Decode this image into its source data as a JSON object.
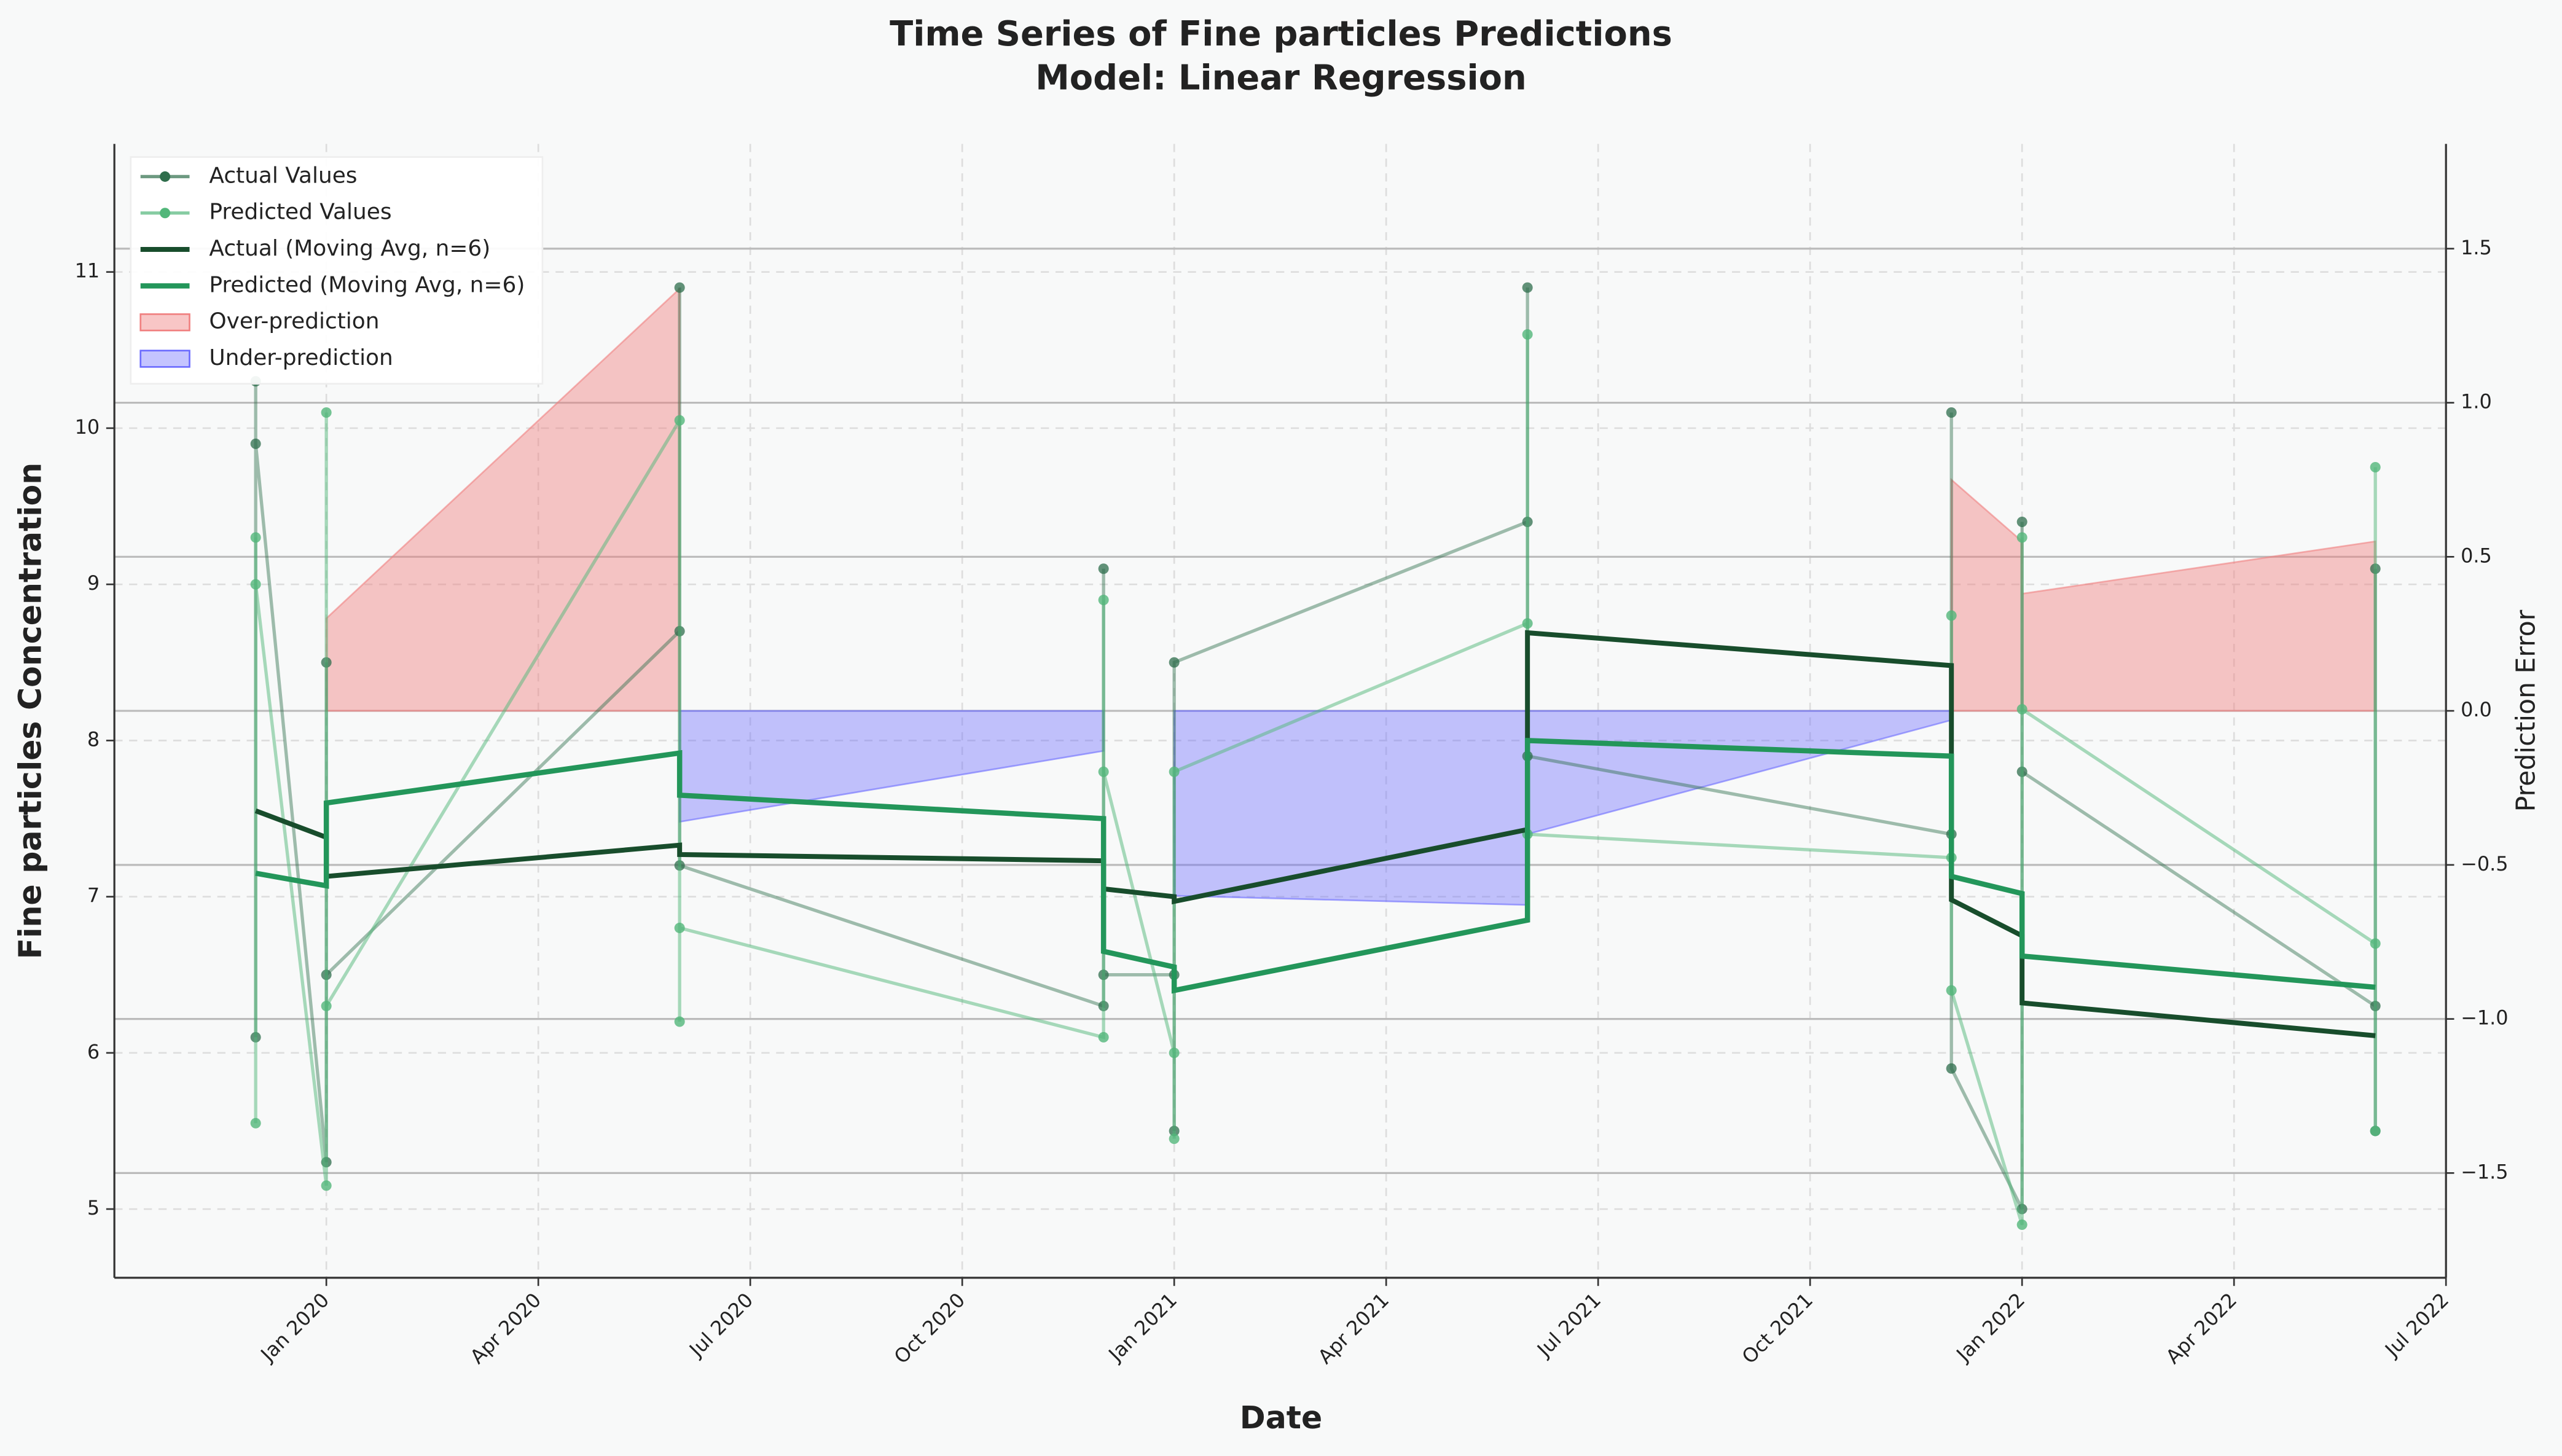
{
  "chart_data": {
    "type": "line",
    "title": "Time Series of Fine particles Predictions",
    "subtitle": "Model: Linear Regression",
    "x_label": "Date",
    "y_label": "Fine particles Concentration",
    "y2_label": "Prediction Error",
    "x": [
      "Dec 2019",
      "Dec 2019",
      "Dec 2019",
      "Jan 2020",
      "Jan 2020",
      "Jan 2020",
      "Jun 2020",
      "Jun 2020",
      "Jun 2020",
      "Dec 2020",
      "Dec 2020",
      "Dec 2020",
      "Jan 2021",
      "Jan 2021",
      "Jan 2021",
      "Jun 2021",
      "Jun 2021",
      "Jun 2021",
      "Dec 2021",
      "Dec 2021",
      "Dec 2021",
      "Jan 2022",
      "Jan 2022",
      "Jan 2022",
      "Jun 2022",
      "Jun 2022",
      "Jun 2022"
    ],
    "xlim": [
      "Oct 2019",
      "Jul 2022"
    ],
    "xticks": [
      "Jan 2020",
      "Apr 2020",
      "Jul 2020",
      "Oct 2020",
      "Jan 2021",
      "Apr 2021",
      "Jul 2021",
      "Oct 2021",
      "Jan 2022",
      "Apr 2022",
      "Jul 2022"
    ],
    "ylim": [
      4.56,
      11.82
    ],
    "yticks": [
      5,
      6,
      7,
      8,
      9,
      10,
      11
    ],
    "y2lim": [
      -1.84,
      1.84
    ],
    "y2ticks": [
      {
        "value": -1.5,
        "label": "−1.5"
      },
      {
        "value": -1,
        "label": "−1.0"
      },
      {
        "value": -0.5,
        "label": "−0.5"
      },
      {
        "value": 0,
        "label": "0.0"
      },
      {
        "value": 0.5,
        "label": "0.5"
      },
      {
        "value": 1,
        "label": "1.0"
      },
      1.5
    ],
    "grid": true,
    "legend": "upper left",
    "series": [
      {
        "name": "Actual Values",
        "kind": "line",
        "marker": true,
        "color": "#2f6e4c",
        "opacity": 0.45,
        "width": 2,
        "values": [
          6.1,
          10.3,
          9.9,
          5.3,
          8.5,
          6.5,
          8.7,
          10.9,
          7.2,
          6.3,
          9.1,
          6.5,
          6.5,
          5.5,
          8.5,
          9.4,
          10.9,
          7.9,
          7.4,
          10.1,
          5.9,
          5.0,
          9.4,
          7.8,
          6.3,
          9.1,
          5.5
        ]
      },
      {
        "name": "Predicted Values",
        "kind": "line",
        "marker": true,
        "color": "#52b77a",
        "opacity": 0.5,
        "width": 2,
        "values": [
          5.55,
          9.3,
          9.0,
          5.15,
          10.1,
          6.3,
          10.05,
          6.2,
          6.8,
          6.1,
          8.9,
          7.8,
          6.0,
          5.45,
          7.8,
          8.75,
          10.6,
          7.4,
          7.25,
          8.8,
          6.4,
          4.9,
          9.3,
          8.2,
          6.7,
          9.75,
          5.5
        ]
      },
      {
        "name": "Actual (Moving Avg, n=6)",
        "kind": "line",
        "marker": false,
        "color": "#184d2c",
        "opacity": 1,
        "width": 3,
        "values": [
          null,
          null,
          7.55,
          7.38,
          7.13,
          7.13,
          7.33,
          7.27,
          7.27,
          7.23,
          7.23,
          7.05,
          7.0,
          6.97,
          6.97,
          7.43,
          8.69,
          8.69,
          8.48,
          6.98,
          6.98,
          6.75,
          6.32,
          6.32,
          6.11,
          6.11,
          6.11
        ]
      },
      {
        "name": "Predicted (Moving Avg, n=6)",
        "kind": "line",
        "marker": false,
        "color": "#23965a",
        "opacity": 1,
        "width": 3.2,
        "values": [
          null,
          null,
          7.15,
          7.07,
          7.6,
          7.6,
          7.92,
          7.65,
          7.65,
          7.5,
          6.65,
          6.65,
          6.55,
          6.4,
          6.4,
          6.85,
          8.0,
          8.0,
          7.9,
          7.13,
          7.13,
          7.02,
          6.62,
          6.62,
          6.42,
          6.42,
          6.42
        ]
      },
      {
        "name": "Over-prediction",
        "kind": "fill",
        "axis": "y2",
        "color": "#f08080",
        "opacity": 0.45,
        "values": [
          null,
          null,
          null,
          null,
          null,
          0.3,
          1.37,
          null,
          null,
          null,
          null,
          null,
          null,
          null,
          null,
          null,
          null,
          null,
          null,
          null,
          0.75,
          0.55,
          null,
          0.38,
          0.55,
          null,
          null
        ]
      },
      {
        "name": "Under-prediction",
        "kind": "fill",
        "axis": "y2",
        "color": "#6b6bff",
        "opacity": 0.4,
        "values": [
          null,
          null,
          null,
          null,
          null,
          null,
          null,
          null,
          -0.36,
          -0.13,
          null,
          null,
          null,
          null,
          -0.6,
          -0.63,
          null,
          -0.4,
          -0.03,
          null,
          null,
          null,
          null,
          null,
          null,
          null,
          null
        ]
      }
    ]
  }
}
